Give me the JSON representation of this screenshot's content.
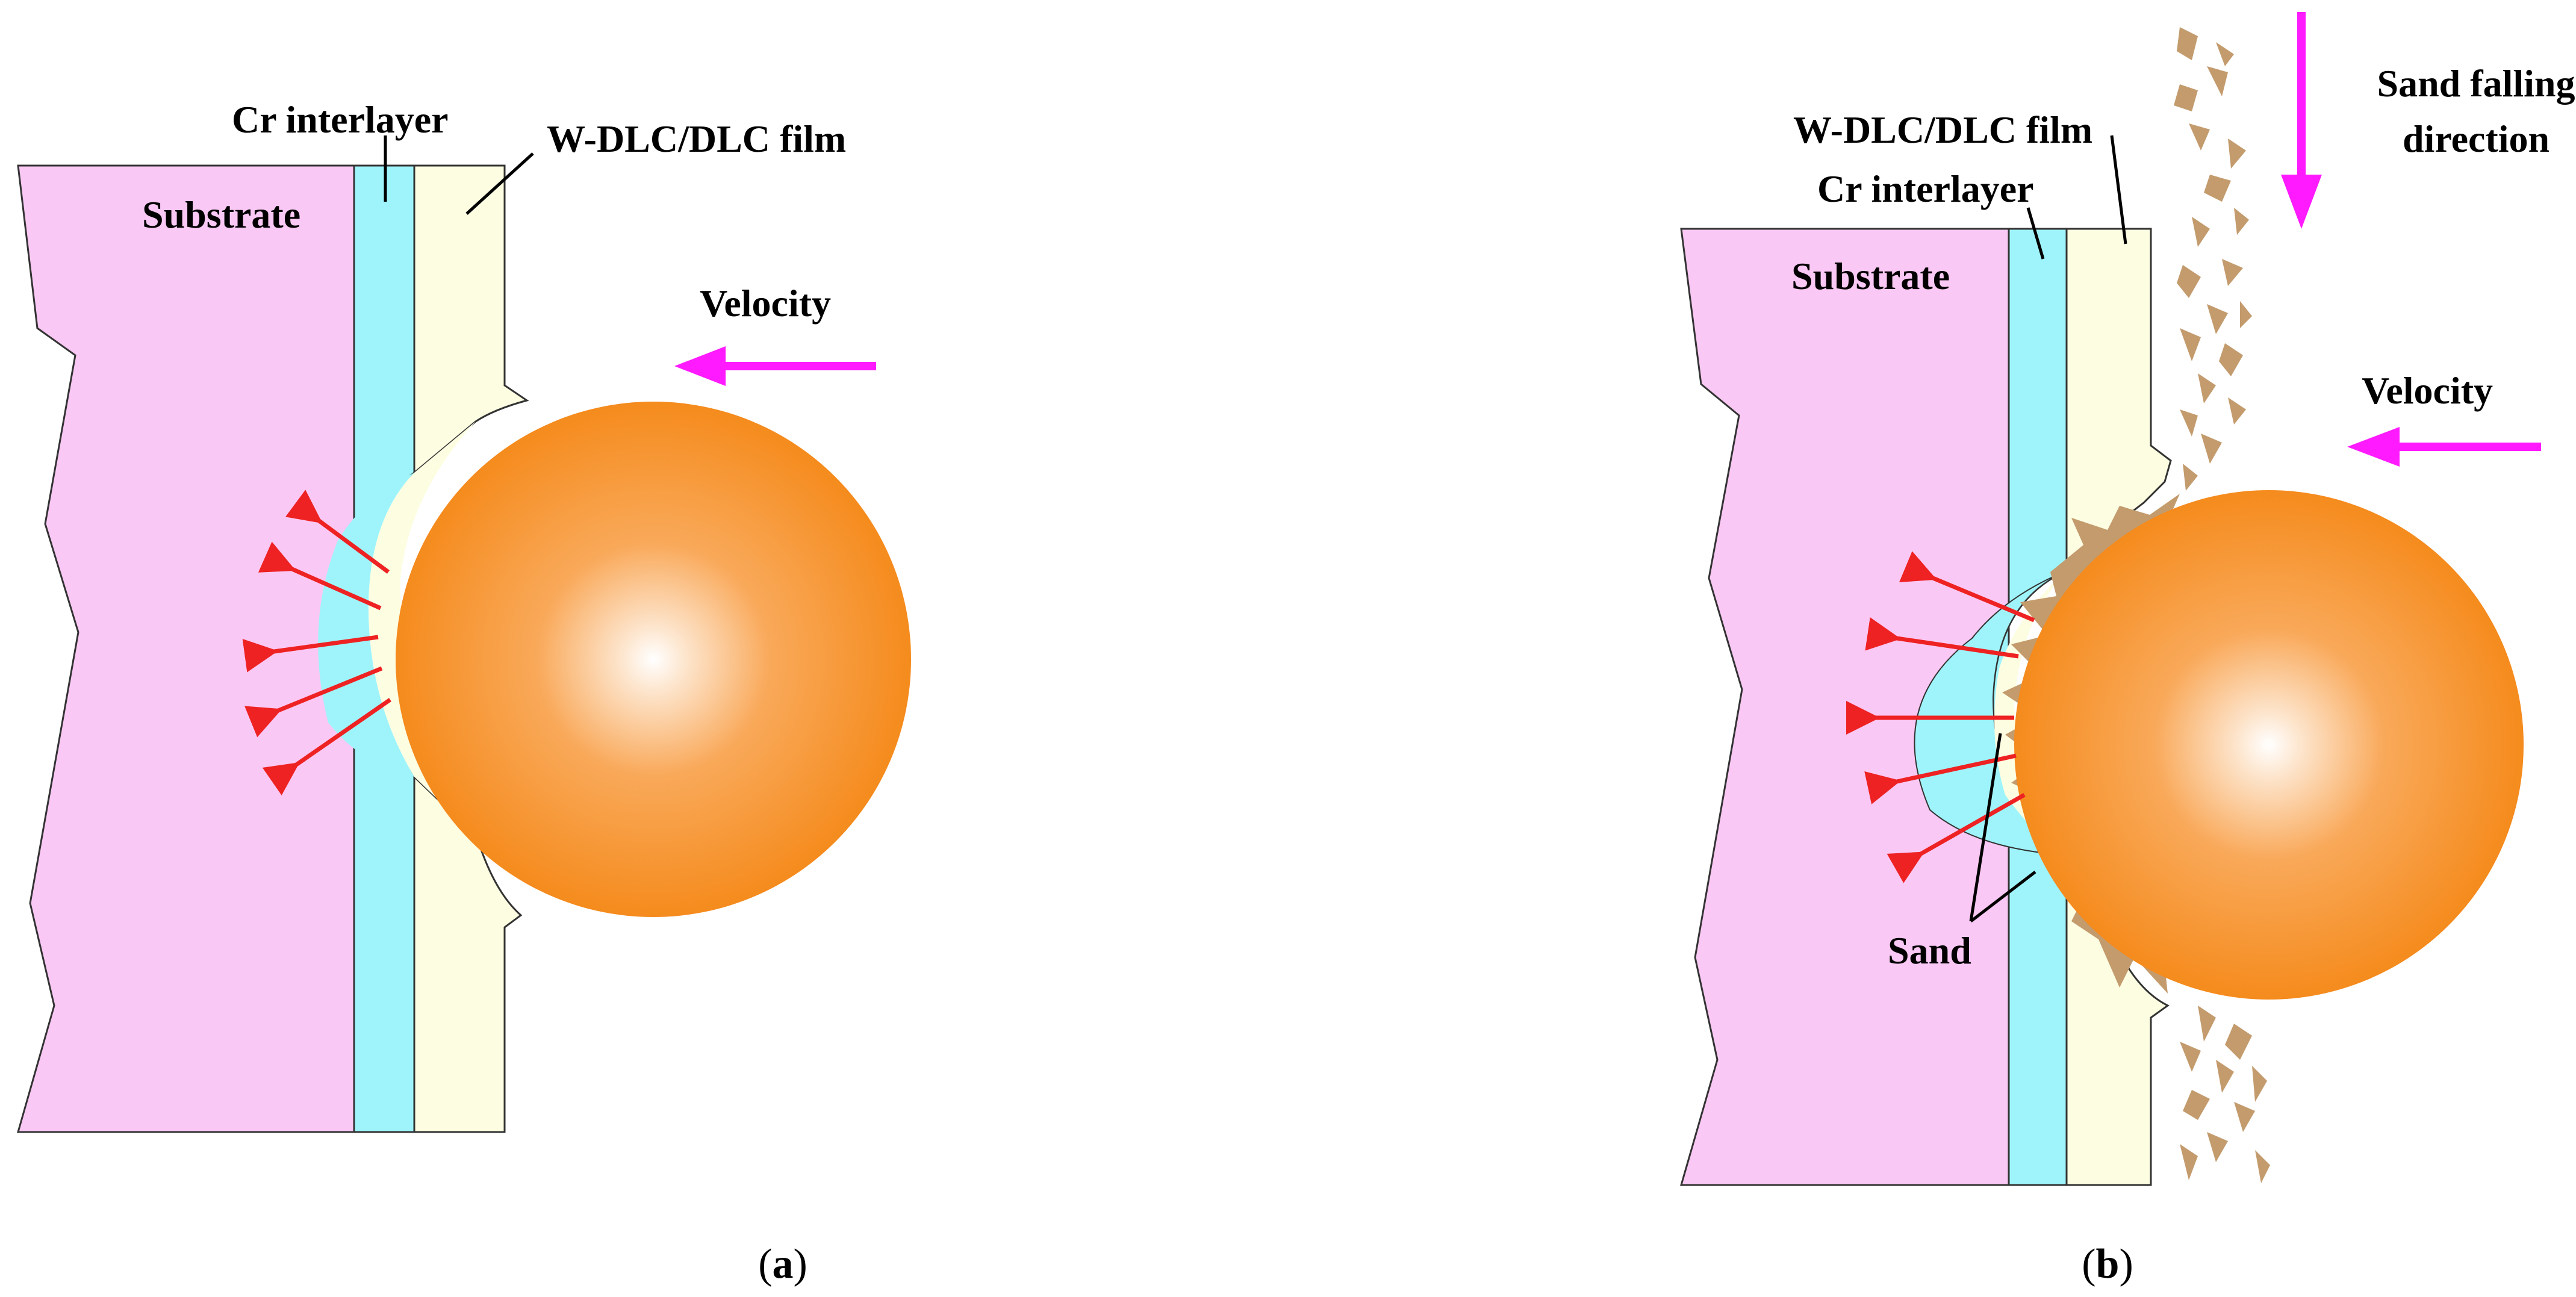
{
  "panels": [
    {
      "id": "a",
      "caption": {
        "open": "(",
        "letter": "a",
        "close": ")"
      },
      "labels": {
        "cr_interlayer": "Cr interlayer",
        "film": "W-DLC/DLC film",
        "substrate": "Substrate",
        "velocity": "Velocity"
      }
    },
    {
      "id": "b",
      "caption": {
        "open": "(",
        "letter": "b",
        "close": ")"
      },
      "labels": {
        "film": "W-DLC/DLC film",
        "cr_interlayer": "Cr interlayer",
        "substrate": "Substrate",
        "velocity": "Velocity",
        "sand_falling_line1": "Sand falling",
        "sand_falling_line2": "direction",
        "sand": "Sand"
      }
    }
  ],
  "colors": {
    "substrate": "#fac8f4",
    "cr_interlayer": "#9ff4fb",
    "film": "#fdfde2",
    "ball_center": "#ffffff",
    "ball_edge": "#f58b1d",
    "stress_arrow": "#ee2222",
    "motion_arrow": "#ff1aff",
    "sand": "#c39b6d"
  }
}
